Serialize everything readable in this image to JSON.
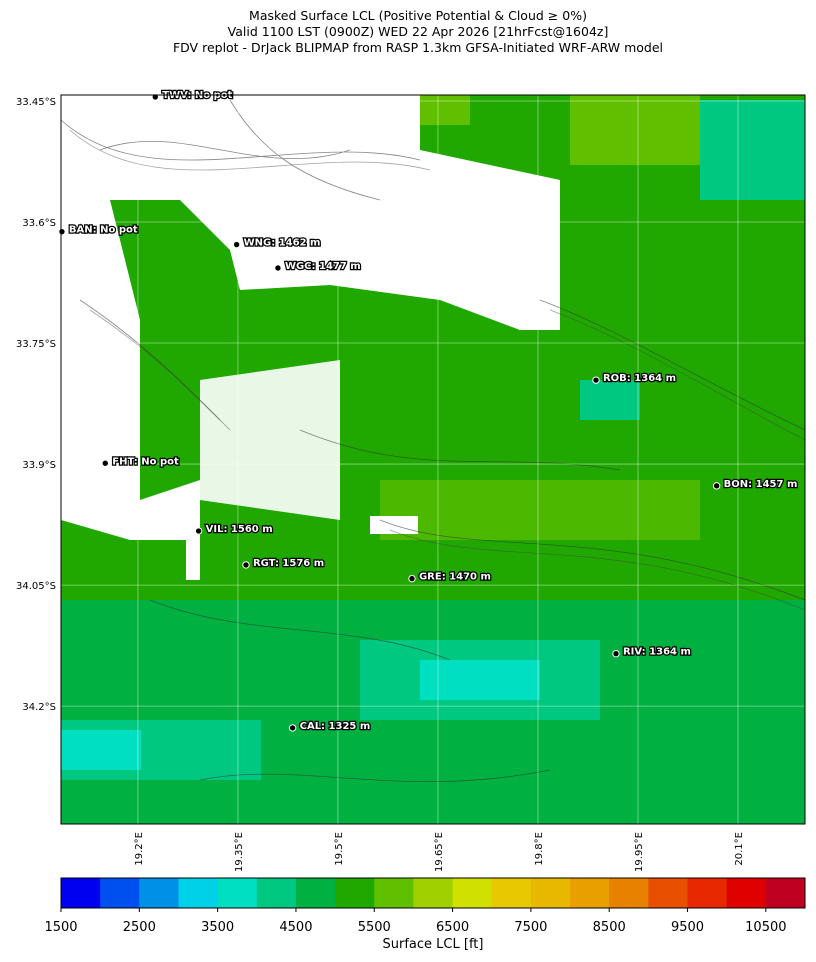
{
  "title_lines": [
    "Masked Surface LCL (Positive Potential & Cloud ≥ 0%)",
    "Valid 1100 LST (0900Z) WED 22 Apr 2026 [21hrFcst@1604z]",
    "FDV replot - DrJack BLIPMAP from RASP 1.3km GFSA-Initiated WRF-ARW model"
  ],
  "map": {
    "xlim": [
      19.0846,
      20.2005
    ],
    "ylim": [
      33.4426,
      34.3461
    ],
    "xticks": [
      {
        "value": 19.2,
        "label": "19.2°E"
      },
      {
        "value": 19.35,
        "label": "19.35°E"
      },
      {
        "value": 19.5,
        "label": "19.5°E"
      },
      {
        "value": 19.65,
        "label": "19.65°E"
      },
      {
        "value": 19.8,
        "label": "19.8°E"
      },
      {
        "value": 19.95,
        "label": "19.95°E"
      },
      {
        "value": 20.1,
        "label": "20.1°E"
      }
    ],
    "yticks": [
      {
        "value": 33.45,
        "label": "33.45°S"
      },
      {
        "value": 33.6,
        "label": "33.6°S"
      },
      {
        "value": 33.75,
        "label": "33.75°S"
      },
      {
        "value": 33.9,
        "label": "33.9°S"
      },
      {
        "value": 34.05,
        "label": "34.05°S"
      },
      {
        "value": 34.2,
        "label": "34.2°S"
      }
    ],
    "stations": [
      {
        "label": "TWV: No pot",
        "lon": 19.226,
        "lat": 33.445
      },
      {
        "label": "BAN: No pot",
        "lon": 19.086,
        "lat": 33.612
      },
      {
        "label": "WNG: 1462 m",
        "lon": 19.348,
        "lat": 33.628
      },
      {
        "label": "WGC: 1477 m",
        "lon": 19.41,
        "lat": 33.657
      },
      {
        "label": "ROB: 1364 m",
        "lon": 19.887,
        "lat": 33.796
      },
      {
        "label": "FHT: No pot",
        "lon": 19.151,
        "lat": 33.899
      },
      {
        "label": "BON: 1457 m",
        "lon": 20.068,
        "lat": 33.927
      },
      {
        "label": "VIL: 1560 m",
        "lon": 19.291,
        "lat": 33.983
      },
      {
        "label": "RGT: 1576 m",
        "lon": 19.362,
        "lat": 34.025
      },
      {
        "label": "GRE: 1470 m",
        "lon": 19.611,
        "lat": 34.042
      },
      {
        "label": "RIV: 1364 m",
        "lon": 19.917,
        "lat": 34.135
      },
      {
        "label": "CAL: 1325 m",
        "lon": 19.432,
        "lat": 34.227
      }
    ]
  },
  "colorbar": {
    "label": "Surface LCL [ft]",
    "lim": [
      1500,
      11000
    ],
    "ticks": [
      1500,
      2500,
      3500,
      4500,
      5500,
      6500,
      7500,
      8500,
      9500,
      10500
    ],
    "colors": [
      "#0000f0",
      "#0050f0",
      "#0090e8",
      "#00d0e8",
      "#00e0c0",
      "#00c880",
      "#00b040",
      "#20a800",
      "#60c000",
      "#a0d000",
      "#d0e000",
      "#e8c800",
      "#e8b800",
      "#e8a000",
      "#e88000",
      "#e85000",
      "#e82800",
      "#e00000",
      "#c00020"
    ]
  }
}
